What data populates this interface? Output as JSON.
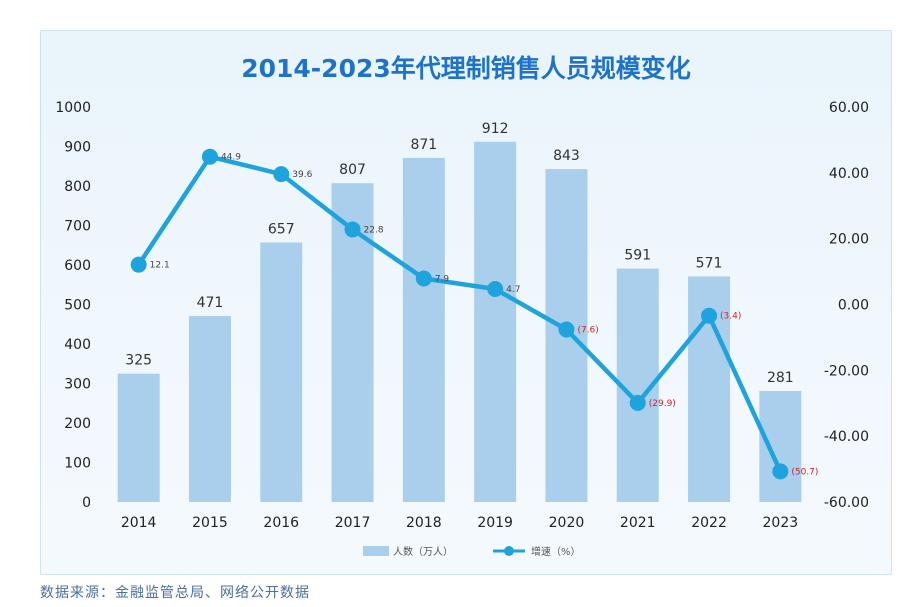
{
  "chart_data": {
    "type": "bar+line",
    "title": "2014-2023年代理制销售人员规模变化",
    "categories": [
      "2014",
      "2015",
      "2016",
      "2017",
      "2018",
      "2019",
      "2020",
      "2021",
      "2022",
      "2023"
    ],
    "series": [
      {
        "name": "人数（万人）",
        "type": "bar",
        "axis": "left",
        "values": [
          325,
          471,
          657,
          807,
          871,
          912,
          843,
          591,
          571,
          281
        ],
        "labels": [
          "325",
          "471",
          "657",
          "807",
          "871",
          "912",
          "843",
          "591",
          "571",
          "281"
        ],
        "color": "#a9cfec"
      },
      {
        "name": "增速（%）",
        "type": "line",
        "axis": "right",
        "values": [
          12.1,
          44.9,
          39.6,
          22.8,
          7.9,
          4.7,
          -7.6,
          -29.9,
          -3.4,
          -50.7
        ],
        "labels": [
          "12.1",
          "44.9",
          "39.6",
          "22.8",
          "7.9",
          "4.7",
          "(7.6)",
          "(29.9)",
          "(3.4)",
          "(50.7)"
        ],
        "color": "#1fa3dc"
      }
    ],
    "y_left": {
      "min": 0,
      "max": 1000,
      "ticks": [
        "0",
        "100",
        "200",
        "300",
        "400",
        "500",
        "600",
        "700",
        "800",
        "900",
        "1000"
      ]
    },
    "y_right": {
      "min": -60,
      "max": 60,
      "ticks": [
        "-60.00",
        "-40.00",
        "-20.00",
        "0.00",
        "20.00",
        "40.00",
        "60.00"
      ]
    },
    "grid": false,
    "legend": "bottom-center",
    "negative_label_color": "#d0232a"
  },
  "source": "数据来源：金融监管总局、网络公开数据"
}
